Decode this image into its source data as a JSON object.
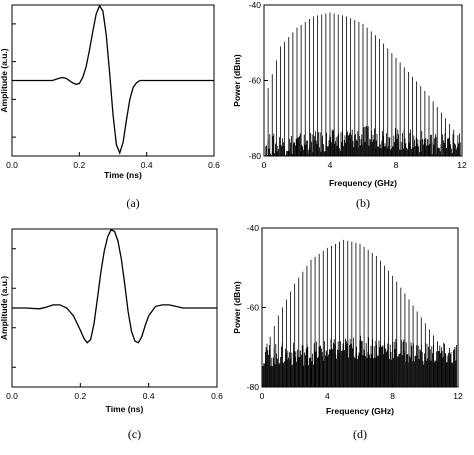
{
  "chart_data": [
    {
      "type": "line",
      "panel_label": "(a)",
      "xlabel": "Time (ns)",
      "ylabel": "Amplitude (a.u.)",
      "xlim": [
        0.0,
        0.6
      ],
      "ylim": [
        -1.0,
        1.0
      ],
      "xticks": [
        0.0,
        0.2,
        0.4,
        0.6
      ],
      "ytick_count": 4,
      "ytick_labels": false,
      "series": [
        {
          "x": [
            0.0,
            0.02,
            0.04,
            0.06,
            0.08,
            0.1,
            0.12,
            0.14,
            0.15,
            0.16,
            0.17,
            0.18,
            0.19,
            0.2,
            0.21,
            0.22,
            0.23,
            0.24,
            0.25,
            0.26,
            0.27,
            0.28,
            0.29,
            0.3,
            0.31,
            0.32,
            0.33,
            0.34,
            0.35,
            0.36,
            0.37,
            0.38,
            0.4,
            0.42,
            0.44,
            0.46,
            0.48,
            0.5,
            0.52,
            0.54,
            0.56,
            0.58,
            0.6
          ],
          "y": [
            0.0,
            0.0,
            0.0,
            0.0,
            0.0,
            0.0,
            0.0,
            0.03,
            0.04,
            0.03,
            0.0,
            -0.03,
            -0.05,
            -0.04,
            0.04,
            0.18,
            0.4,
            0.65,
            0.88,
            0.99,
            0.92,
            0.6,
            0.1,
            -0.45,
            -0.85,
            -0.96,
            -0.82,
            -0.52,
            -0.25,
            -0.09,
            -0.03,
            0.0,
            0.0,
            0.0,
            0.0,
            0.0,
            0.0,
            0.0,
            0.0,
            0.0,
            0.0,
            0.0,
            0.0
          ]
        }
      ]
    },
    {
      "type": "bar",
      "panel_label": "(b)",
      "xlabel": "Frequency (GHz)",
      "ylabel": "Power (dBm)",
      "xlim": [
        0,
        12
      ],
      "ylim": [
        -80,
        -40
      ],
      "xticks": [
        0,
        4,
        8,
        12
      ],
      "yticks": [
        -80,
        -60,
        -40
      ],
      "line_spacing_ghz": 0.25,
      "noise_floor_dbm": -77,
      "envelope": {
        "x": [
          0.25,
          1,
          2,
          3,
          4,
          5,
          6,
          7,
          8,
          9,
          10,
          11,
          12
        ],
        "y": [
          -62,
          -51,
          -46,
          -43,
          -42,
          -43,
          -45,
          -49,
          -54,
          -59,
          -64,
          -70,
          -76
        ]
      }
    },
    {
      "type": "line",
      "panel_label": "(c)",
      "xlabel": "Time (ns)",
      "ylabel": "Amplitude (a.u.)",
      "xlim": [
        0.0,
        0.6
      ],
      "ylim": [
        -1.0,
        1.0
      ],
      "xticks": [
        0.0,
        0.2,
        0.4,
        0.6
      ],
      "ytick_count": 4,
      "ytick_labels": false,
      "series": [
        {
          "x": [
            0.0,
            0.04,
            0.08,
            0.1,
            0.12,
            0.14,
            0.16,
            0.18,
            0.2,
            0.21,
            0.22,
            0.23,
            0.24,
            0.25,
            0.26,
            0.27,
            0.28,
            0.29,
            0.3,
            0.31,
            0.32,
            0.33,
            0.34,
            0.35,
            0.36,
            0.37,
            0.38,
            0.39,
            0.4,
            0.42,
            0.44,
            0.46,
            0.48,
            0.5,
            0.52,
            0.56,
            0.6
          ],
          "y": [
            0.0,
            0.0,
            -0.01,
            0.01,
            0.04,
            0.04,
            0.0,
            -0.1,
            -0.28,
            -0.38,
            -0.44,
            -0.4,
            -0.2,
            0.12,
            0.45,
            0.72,
            0.9,
            0.99,
            0.97,
            0.85,
            0.62,
            0.3,
            -0.05,
            -0.3,
            -0.42,
            -0.44,
            -0.36,
            -0.22,
            -0.1,
            0.02,
            0.04,
            0.04,
            0.02,
            0.0,
            0.0,
            0.0,
            0.0
          ]
        }
      ]
    },
    {
      "type": "bar",
      "panel_label": "(d)",
      "xlabel": "Frequency (GHz)",
      "ylabel": "Power (dBm)",
      "xlim": [
        0,
        12
      ],
      "ylim": [
        -80,
        -40
      ],
      "xticks": [
        0,
        4,
        8,
        12
      ],
      "yticks": [
        -80,
        -60,
        -40
      ],
      "line_spacing_ghz": 0.25,
      "noise_floor_dbm": -72,
      "envelope": {
        "x": [
          0.25,
          1,
          2,
          3,
          4,
          5,
          6,
          7,
          8,
          9,
          10,
          11,
          12
        ],
        "y": [
          -70,
          -62,
          -54,
          -48,
          -45,
          -43,
          -44,
          -47,
          -52,
          -58,
          -64,
          -70,
          -76
        ]
      }
    }
  ]
}
